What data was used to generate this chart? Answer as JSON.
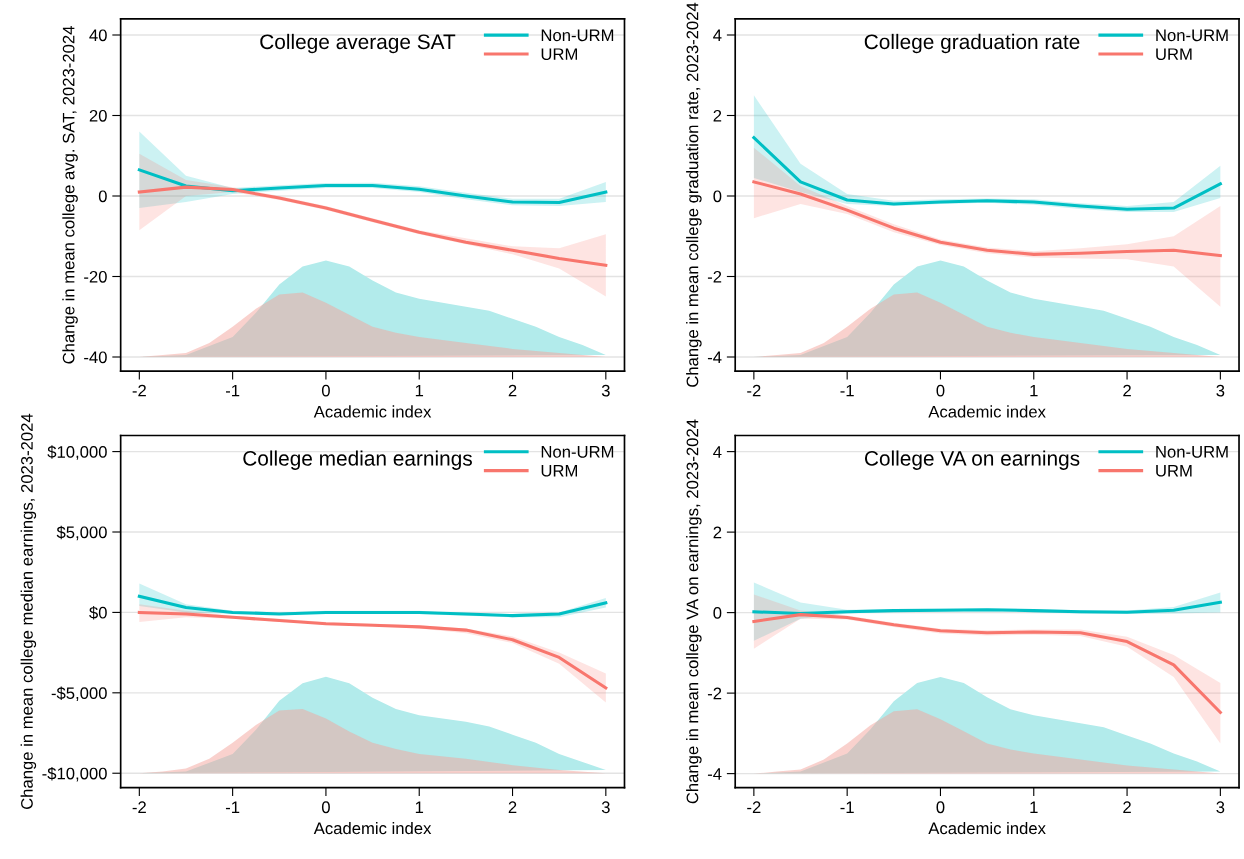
{
  "chart_data": [
    {
      "type": "line",
      "title": "College average SAT",
      "xlabel": "Academic index",
      "ylabel": "Change in mean college avg. SAT, 2023-2024",
      "xlim": [
        -2.2,
        3.2
      ],
      "xticks": [
        -2,
        -1,
        0,
        1,
        2,
        3
      ],
      "ylim": [
        -43.5,
        44
      ],
      "yticks": [
        -40,
        -20,
        0,
        20,
        40
      ],
      "grid": "y",
      "legend": "top right",
      "x": [
        -2,
        -1.5,
        -1,
        -0.5,
        0,
        0.5,
        1,
        1.5,
        2,
        2.5,
        3
      ],
      "series": [
        {
          "name": "Non-URM",
          "color": "#00bfc4",
          "values": [
            6.5,
            2.5,
            1.3,
            2,
            2.6,
            2.6,
            1.7,
            0,
            -1.5,
            -1.6,
            1.0
          ],
          "lower": [
            -3,
            -1.5,
            0.5,
            1.3,
            2,
            2,
            1,
            -0.8,
            -2.3,
            -2.5,
            -1.5
          ],
          "upper": [
            16,
            5,
            2,
            2.7,
            3.2,
            3.3,
            2.4,
            0.8,
            -0.7,
            -0.7,
            3.5
          ]
        },
        {
          "name": "URM",
          "color": "#f8766d",
          "values": [
            1,
            2.2,
            1.6,
            -0.5,
            -3,
            -6,
            -9,
            -11.5,
            -13.5,
            -15.5,
            -17.2
          ],
          "lower": [
            -8.5,
            0,
            1,
            -1,
            -3.5,
            -6.5,
            -9.5,
            -12,
            -14.5,
            -18,
            -25
          ],
          "upper": [
            10.5,
            4,
            2.2,
            0,
            -2.5,
            -5.5,
            -8.5,
            -10.5,
            -12.5,
            -13,
            -9.5
          ]
        },
        {
          "type": "area",
          "color": "#b2ebeb",
          "x": [
            -2,
            -1.5,
            -1,
            -0.75,
            -0.5,
            -0.25,
            0,
            0.25,
            0.5,
            0.75,
            1,
            1.25,
            1.5,
            1.75,
            2,
            2.25,
            2.5,
            2.75,
            3
          ],
          "values": [
            -40,
            -39.5,
            -35,
            -29,
            -22,
            -17.5,
            -16,
            -17.5,
            -21,
            -24,
            -25.5,
            -26.5,
            -27.5,
            -28.5,
            -30.5,
            -32.5,
            -35,
            -37,
            -39.5
          ]
        },
        {
          "type": "area",
          "color": "#f4a49c",
          "x": [
            -2,
            -1.75,
            -1.5,
            -1.25,
            -1,
            -0.75,
            -0.5,
            -0.25,
            0,
            0.25,
            0.5,
            0.75,
            1,
            1.5,
            2,
            2.5,
            3
          ],
          "values": [
            -40,
            -39.5,
            -39,
            -36.5,
            -32.5,
            -28,
            -24.5,
            -24,
            -26.5,
            -29.5,
            -32.5,
            -34,
            -35,
            -36.5,
            -38,
            -39,
            -40
          ]
        }
      ]
    },
    {
      "type": "line",
      "title": "College graduation rate",
      "xlabel": "Academic index",
      "ylabel": "Change in mean college graduation rate, 2023-2024",
      "xlim": [
        -2.2,
        3.2
      ],
      "xticks": [
        -2,
        -1,
        0,
        1,
        2,
        3
      ],
      "ylim": [
        -4.35,
        4.4
      ],
      "yticks": [
        -4,
        -2,
        0,
        2,
        4
      ],
      "grid": "y",
      "legend": "top right",
      "x": [
        -2,
        -1.5,
        -1,
        -0.5,
        0,
        0.5,
        1,
        1.5,
        2,
        2.5,
        3
      ],
      "series": [
        {
          "name": "Non-URM",
          "color": "#00bfc4",
          "values": [
            1.45,
            0.35,
            -0.1,
            -0.2,
            -0.15,
            -0.12,
            -0.15,
            -0.25,
            -0.33,
            -0.3,
            0.3
          ],
          "lower": [
            0.45,
            0.1,
            -0.2,
            -0.25,
            -0.2,
            -0.17,
            -0.22,
            -0.32,
            -0.4,
            -0.4,
            -0.05
          ],
          "upper": [
            2.5,
            0.8,
            0.05,
            -0.12,
            -0.08,
            -0.06,
            -0.08,
            -0.18,
            -0.25,
            -0.15,
            0.75
          ]
        },
        {
          "name": "URM",
          "color": "#f8766d",
          "values": [
            0.35,
            0.05,
            -0.35,
            -0.8,
            -1.15,
            -1.35,
            -1.45,
            -1.42,
            -1.38,
            -1.35,
            -1.48
          ],
          "lower": [
            -0.55,
            -0.2,
            -0.45,
            -0.9,
            -1.22,
            -1.42,
            -1.53,
            -1.55,
            -1.57,
            -1.75,
            -2.75
          ],
          "upper": [
            1.2,
            0.25,
            -0.25,
            -0.7,
            -1.08,
            -1.28,
            -1.37,
            -1.3,
            -1.2,
            -1.0,
            -0.25
          ]
        },
        {
          "type": "area",
          "color": "#b2ebeb",
          "x": [
            -2,
            -1.5,
            -1,
            -0.75,
            -0.5,
            -0.25,
            0,
            0.25,
            0.5,
            0.75,
            1,
            1.25,
            1.5,
            1.75,
            2,
            2.25,
            2.5,
            2.75,
            3
          ],
          "values": [
            -4,
            -3.95,
            -3.5,
            -2.9,
            -2.2,
            -1.75,
            -1.6,
            -1.75,
            -2.1,
            -2.4,
            -2.55,
            -2.65,
            -2.75,
            -2.85,
            -3.05,
            -3.25,
            -3.5,
            -3.7,
            -3.95
          ]
        },
        {
          "type": "area",
          "color": "#f4a49c",
          "x": [
            -2,
            -1.75,
            -1.5,
            -1.25,
            -1,
            -0.75,
            -0.5,
            -0.25,
            0,
            0.25,
            0.5,
            0.75,
            1,
            1.5,
            2,
            2.5,
            3
          ],
          "values": [
            -4,
            -3.95,
            -3.9,
            -3.65,
            -3.25,
            -2.8,
            -2.45,
            -2.4,
            -2.65,
            -2.95,
            -3.25,
            -3.4,
            -3.5,
            -3.65,
            -3.8,
            -3.9,
            -4
          ]
        }
      ]
    },
    {
      "type": "line",
      "title": "College median earnings",
      "xlabel": "Academic index",
      "ylabel": "Change in mean college median earnings, 2023-2024",
      "xlim": [
        -2.2,
        3.2
      ],
      "xticks": [
        -2,
        -1,
        0,
        1,
        2,
        3
      ],
      "ylim": [
        -10900,
        11000
      ],
      "yticks": [
        {
          "value": -10000,
          "label": "-$10,000"
        },
        {
          "value": -5000,
          "label": "-$5,000"
        },
        {
          "value": 0,
          "label": "$0"
        },
        {
          "value": 5000,
          "label": "$5,000"
        },
        {
          "value": 10000,
          "label": "$10,000"
        }
      ],
      "grid": "y",
      "legend": "top right",
      "x": [
        -2,
        -1.5,
        -1,
        -0.5,
        0,
        0.5,
        1,
        1.5,
        2,
        2.5,
        3
      ],
      "series": [
        {
          "name": "Non-URM",
          "color": "#00bfc4",
          "values": [
            1000,
            300,
            0,
            -100,
            0,
            0,
            0,
            -100,
            -200,
            -100,
            600
          ],
          "lower": [
            400,
            0,
            -100,
            -100,
            0,
            0,
            -100,
            -200,
            -300,
            -300,
            300
          ],
          "upper": [
            1800,
            500,
            100,
            0,
            100,
            100,
            100,
            -100,
            -100,
            0,
            900
          ]
        },
        {
          "name": "URM",
          "color": "#f8766d",
          "values": [
            0,
            -100,
            -300,
            -500,
            -700,
            -800,
            -900,
            -1100,
            -1700,
            -2800,
            -4700
          ],
          "lower": [
            -600,
            -300,
            -400,
            -600,
            -700,
            -800,
            -1000,
            -1300,
            -1900,
            -3200,
            -5600
          ],
          "upper": [
            500,
            100,
            -200,
            -400,
            -600,
            -700,
            -800,
            -1000,
            -1500,
            -2500,
            -3800
          ]
        },
        {
          "type": "area",
          "color": "#b2ebeb",
          "x": [
            -2,
            -1.5,
            -1,
            -0.75,
            -0.5,
            -0.25,
            0,
            0.25,
            0.5,
            0.75,
            1,
            1.25,
            1.5,
            1.75,
            2,
            2.25,
            2.5,
            2.75,
            3
          ],
          "values": [
            -10000,
            -9900,
            -8800,
            -7300,
            -5500,
            -4400,
            -4000,
            -4400,
            -5300,
            -6000,
            -6400,
            -6600,
            -6800,
            -7100,
            -7600,
            -8100,
            -8800,
            -9300,
            -9800
          ]
        },
        {
          "type": "area",
          "color": "#f4a49c",
          "x": [
            -2,
            -1.75,
            -1.5,
            -1.25,
            -1,
            -0.75,
            -0.5,
            -0.25,
            0,
            0.25,
            0.5,
            0.75,
            1,
            1.5,
            2,
            2.5,
            3
          ],
          "values": [
            -10000,
            -9900,
            -9700,
            -9100,
            -8100,
            -7000,
            -6100,
            -6000,
            -6600,
            -7400,
            -8100,
            -8500,
            -8800,
            -9100,
            -9500,
            -9800,
            -10000
          ]
        }
      ]
    },
    {
      "type": "line",
      "title": "College VA on earnings",
      "xlabel": "Academic index",
      "ylabel": "Change in mean college VA on earnings, 2023-2024",
      "xlim": [
        -2.2,
        3.2
      ],
      "xticks": [
        -2,
        -1,
        0,
        1,
        2,
        3
      ],
      "ylim": [
        -4.35,
        4.4
      ],
      "yticks": [
        -4,
        -2,
        0,
        2,
        4
      ],
      "grid": "y",
      "legend": "top right",
      "x": [
        -2,
        -1.5,
        -1,
        -0.5,
        0,
        0.5,
        1,
        1.5,
        2,
        2.5,
        3
      ],
      "series": [
        {
          "name": "Non-URM",
          "color": "#00bfc4",
          "values": [
            0.02,
            -0.02,
            0.02,
            0.05,
            0.06,
            0.07,
            0.05,
            0.02,
            0.01,
            0.06,
            0.26
          ],
          "lower": [
            -0.7,
            -0.15,
            -0.02,
            0.02,
            0.03,
            0.03,
            0.01,
            -0.02,
            -0.03,
            -0.02,
            0.0
          ],
          "upper": [
            0.75,
            0.25,
            0.07,
            0.09,
            0.1,
            0.1,
            0.09,
            0.06,
            0.05,
            0.14,
            0.5
          ]
        },
        {
          "name": "URM",
          "color": "#f8766d",
          "values": [
            -0.22,
            -0.05,
            -0.12,
            -0.3,
            -0.45,
            -0.5,
            -0.48,
            -0.5,
            -0.72,
            -1.3,
            -2.48
          ],
          "lower": [
            -0.9,
            -0.15,
            -0.17,
            -0.36,
            -0.52,
            -0.57,
            -0.55,
            -0.58,
            -0.85,
            -1.6,
            -3.25
          ],
          "upper": [
            0.45,
            0.05,
            -0.07,
            -0.25,
            -0.4,
            -0.44,
            -0.42,
            -0.42,
            -0.6,
            -1.05,
            -1.75
          ]
        },
        {
          "type": "area",
          "color": "#b2ebeb",
          "x": [
            -2,
            -1.5,
            -1,
            -0.75,
            -0.5,
            -0.25,
            0,
            0.25,
            0.5,
            0.75,
            1,
            1.25,
            1.5,
            1.75,
            2,
            2.25,
            2.5,
            2.75,
            3
          ],
          "values": [
            -4,
            -3.95,
            -3.5,
            -2.9,
            -2.2,
            -1.75,
            -1.6,
            -1.75,
            -2.1,
            -2.4,
            -2.55,
            -2.65,
            -2.75,
            -2.85,
            -3.05,
            -3.25,
            -3.5,
            -3.7,
            -3.95
          ]
        },
        {
          "type": "area",
          "color": "#f4a49c",
          "x": [
            -2,
            -1.75,
            -1.5,
            -1.25,
            -1,
            -0.75,
            -0.5,
            -0.25,
            0,
            0.25,
            0.5,
            0.75,
            1,
            1.5,
            2,
            2.5,
            3
          ],
          "values": [
            -4,
            -3.95,
            -3.9,
            -3.65,
            -3.25,
            -2.8,
            -2.45,
            -2.4,
            -2.65,
            -2.95,
            -3.25,
            -3.4,
            -3.5,
            -3.65,
            -3.8,
            -3.9,
            -4
          ]
        }
      ]
    }
  ]
}
